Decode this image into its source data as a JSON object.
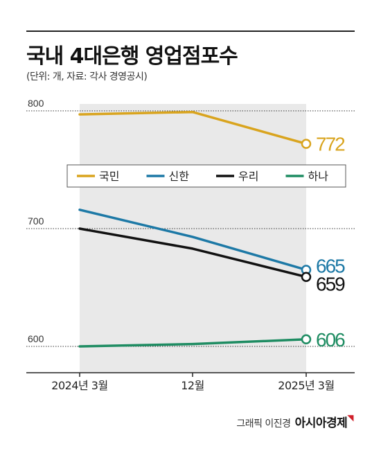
{
  "header": {
    "title": "국내 4대은행 영업점포수",
    "subtitle": "(단위: 개, 자료: 각사 경영공시)"
  },
  "credit": {
    "text": "그래픽 이진경",
    "brand": "아시아경제"
  },
  "colors": {
    "kookmin": "#d9a41e",
    "shinhan": "#1d79a6",
    "woori": "#111111",
    "hana": "#1e8c62",
    "shade": "#e9e9e9"
  },
  "chart_data": {
    "type": "line",
    "title": "국내 4대은행 영업점포수",
    "subtitle": "(단위: 개, 자료: 각사 경영공시)",
    "categories": [
      "2024년 3월",
      "12월",
      "2025년 3월"
    ],
    "ylim": [
      570,
      820
    ],
    "yticks": [
      600,
      700,
      800
    ],
    "grid": "dotted",
    "legend": "center",
    "series": [
      {
        "name": "국민",
        "values": [
          797,
          799,
          772
        ],
        "end_label": "772",
        "color": "#d9a41e"
      },
      {
        "name": "신한",
        "values": [
          716,
          693,
          665
        ],
        "end_label": "665",
        "color": "#1d79a6"
      },
      {
        "name": "우리",
        "values": [
          700,
          683,
          659
        ],
        "end_label": "659",
        "color": "#111111"
      },
      {
        "name": "하나",
        "values": [
          600,
          602,
          606
        ],
        "end_label": "606",
        "color": "#1e8c62"
      }
    ]
  }
}
